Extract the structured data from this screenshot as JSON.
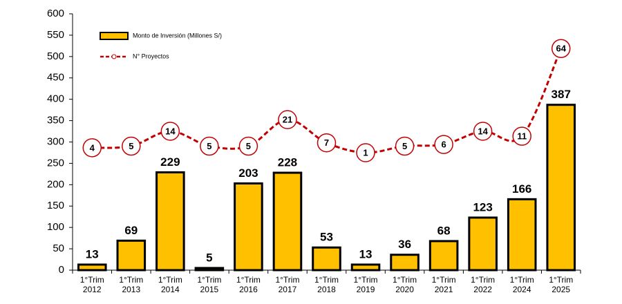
{
  "chart_data": {
    "type": "bar+line",
    "categories": [
      "1°Trim 2012",
      "1°Trim 2013",
      "1°Trim 2014",
      "1°Trim 2015",
      "1°Trim 2016",
      "1°Trim 2017",
      "1°Trim 2018",
      "1°Trim 2019",
      "1°Trim 2020",
      "1°Trim 2021",
      "1°Trim 2022",
      "1°Trim 2024",
      "1°Trim 2025"
    ],
    "series": [
      {
        "name": "Monto de Inversión (Millones S/)",
        "type": "bar",
        "color": "#FFC000",
        "values": [
          13,
          69,
          229,
          5,
          203,
          228,
          53,
          13,
          36,
          68,
          123,
          166,
          387
        ]
      },
      {
        "name": "N° Proyectos",
        "type": "line",
        "color": "#C00000",
        "axis": "y2",
        "values": [
          4,
          5,
          14,
          5,
          5,
          21,
          7,
          1,
          5,
          6,
          14,
          11,
          64
        ]
      }
    ],
    "ylim": [
      0,
      600
    ],
    "yticks": [
      0,
      50,
      100,
      150,
      200,
      250,
      300,
      350,
      400,
      450,
      500,
      550,
      600
    ],
    "y2lim": [
      -70,
      85
    ],
    "grid": false,
    "legend": "upper left"
  }
}
